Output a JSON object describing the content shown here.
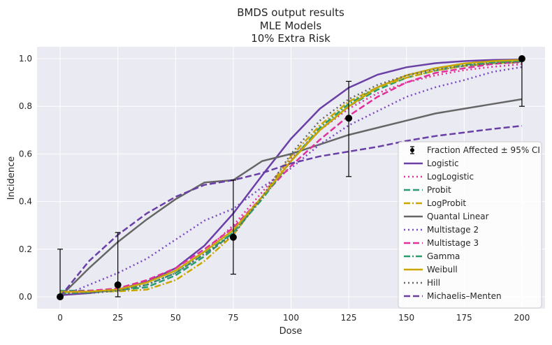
{
  "chart_data": {
    "type": "line",
    "title_lines": [
      "BMDS output results",
      "MLE Models",
      "10% Extra Risk"
    ],
    "xlabel": "Dose",
    "ylabel": "Incidence",
    "xlim": [
      -10,
      210
    ],
    "ylim": [
      -0.05,
      1.05
    ],
    "x_ticks": [
      0,
      25,
      50,
      75,
      100,
      125,
      150,
      175,
      200
    ],
    "x_tick_labels": [
      "0",
      "25",
      "50",
      "75",
      "100",
      "125",
      "150",
      "175",
      "200"
    ],
    "y_ticks": [
      0.0,
      0.2,
      0.4,
      0.6,
      0.8,
      1.0
    ],
    "y_tick_labels": [
      "0.0",
      "0.2",
      "0.4",
      "0.6",
      "0.8",
      "1.0"
    ],
    "grid": true,
    "background_color": "#eaeaf2",
    "legend_position": "lower right",
    "x": [
      0,
      12.5,
      25,
      37.5,
      50,
      62.5,
      75,
      87.5,
      100,
      112.5,
      125,
      137.5,
      150,
      162.5,
      175,
      187.5,
      200
    ],
    "observed": {
      "name": "Fraction Affected ± 95% CI",
      "color": "#000000",
      "points": [
        {
          "dose": 0,
          "value": 0.0,
          "ci_low": 0.0,
          "ci_high": 0.2
        },
        {
          "dose": 25,
          "value": 0.05,
          "ci_low": 0.0,
          "ci_high": 0.27
        },
        {
          "dose": 75,
          "value": 0.25,
          "ci_low": 0.095,
          "ci_high": 0.49
        },
        {
          "dose": 125,
          "value": 0.75,
          "ci_low": 0.505,
          "ci_high": 0.905
        },
        {
          "dose": 200,
          "value": 1.0,
          "ci_low": 0.8,
          "ci_high": 1.0
        }
      ]
    },
    "series": [
      {
        "name": "Logistic",
        "color": "#6a3fa6",
        "dash": "solid",
        "values": [
          0.007,
          0.015,
          0.031,
          0.063,
          0.12,
          0.215,
          0.35,
          0.51,
          0.664,
          0.79,
          0.878,
          0.933,
          0.964,
          0.981,
          0.99,
          0.995,
          0.997
        ]
      },
      {
        "name": "LogLogistic",
        "color": "#e0309a",
        "dash": "dot",
        "values": [
          0.01,
          0.015,
          0.03,
          0.06,
          0.11,
          0.19,
          0.3,
          0.44,
          0.58,
          0.7,
          0.79,
          0.855,
          0.9,
          0.93,
          0.952,
          0.966,
          0.977
        ]
      },
      {
        "name": "Probit",
        "color": "#2a9d6f",
        "dash": "dash",
        "values": [
          0.025,
          0.026,
          0.028,
          0.04,
          0.09,
          0.17,
          0.27,
          0.42,
          0.57,
          0.7,
          0.8,
          0.87,
          0.92,
          0.95,
          0.97,
          0.982,
          0.99
        ]
      },
      {
        "name": "LogProbit",
        "color": "#c9a600",
        "dash": "dashdot",
        "values": [
          0.02,
          0.021,
          0.023,
          0.03,
          0.07,
          0.15,
          0.26,
          0.42,
          0.59,
          0.72,
          0.82,
          0.88,
          0.92,
          0.95,
          0.97,
          0.98,
          0.985
        ]
      },
      {
        "name": "Quantal Linear",
        "color": "#666666",
        "dash": "solid",
        "values": [
          0.0,
          0.12,
          0.23,
          0.325,
          0.41,
          0.48,
          0.49,
          0.57,
          0.6,
          0.64,
          0.68,
          0.71,
          0.74,
          0.77,
          0.79,
          0.81,
          0.83
        ]
      },
      {
        "name": "Multistage 2",
        "color": "#7a4bbf",
        "dash": "dot",
        "values": [
          0.0,
          0.05,
          0.1,
          0.16,
          0.24,
          0.32,
          0.37,
          0.46,
          0.54,
          0.64,
          0.72,
          0.78,
          0.84,
          0.88,
          0.91,
          0.945,
          0.965
        ]
      },
      {
        "name": "Multistage 3",
        "color": "#e0309a",
        "dash": "dash",
        "values": [
          0.02,
          0.025,
          0.035,
          0.07,
          0.12,
          0.2,
          0.29,
          0.42,
          0.55,
          0.66,
          0.76,
          0.84,
          0.9,
          0.94,
          0.96,
          0.978,
          0.987
        ]
      },
      {
        "name": "Gamma",
        "color": "#2a9d6f",
        "dash": "dashdot",
        "values": [
          0.015,
          0.018,
          0.028,
          0.05,
          0.1,
          0.18,
          0.27,
          0.41,
          0.57,
          0.71,
          0.81,
          0.88,
          0.93,
          0.96,
          0.975,
          0.985,
          0.99
        ]
      },
      {
        "name": "Weibull",
        "color": "#c9a600",
        "dash": "solid",
        "values": [
          0.02,
          0.022,
          0.03,
          0.06,
          0.11,
          0.19,
          0.28,
          0.42,
          0.57,
          0.7,
          0.8,
          0.88,
          0.93,
          0.96,
          0.98,
          0.99,
          0.995
        ]
      },
      {
        "name": "Hill",
        "color": "#666666",
        "dash": "dot",
        "values": [
          0.01,
          0.015,
          0.025,
          0.05,
          0.1,
          0.18,
          0.26,
          0.42,
          0.6,
          0.74,
          0.83,
          0.89,
          0.93,
          0.955,
          0.97,
          0.98,
          0.985
        ]
      },
      {
        "name": "Michaelis–Menten",
        "color": "#6a3fa6",
        "dash": "dash",
        "values": [
          0.0,
          0.15,
          0.26,
          0.35,
          0.42,
          0.47,
          0.49,
          0.52,
          0.56,
          0.59,
          0.61,
          0.63,
          0.655,
          0.675,
          0.69,
          0.705,
          0.718
        ]
      }
    ]
  }
}
